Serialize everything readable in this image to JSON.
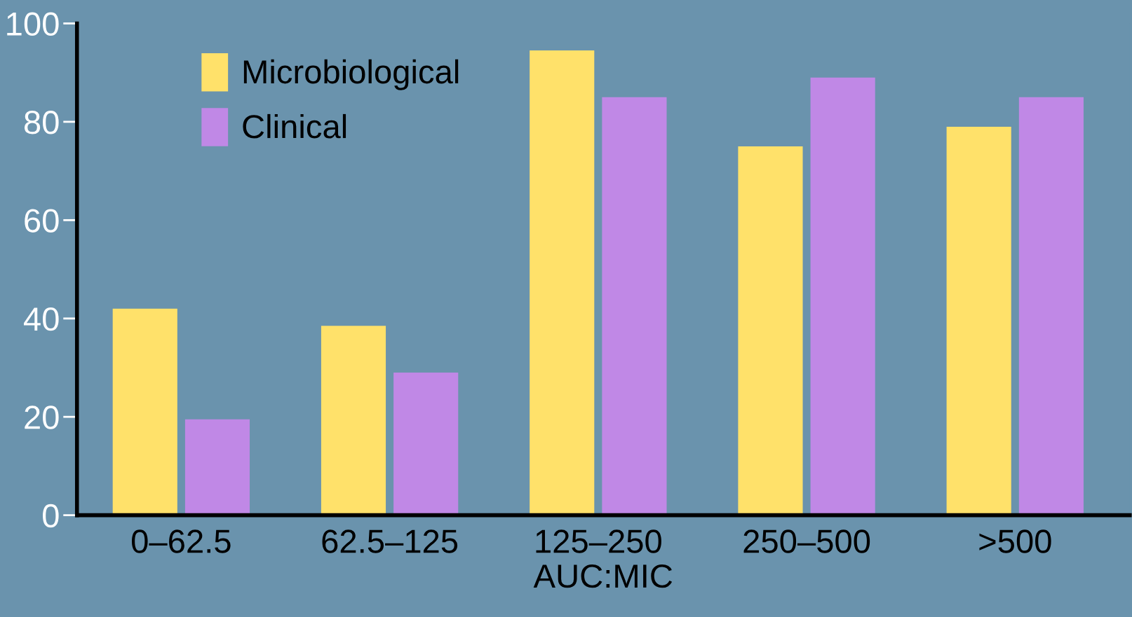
{
  "chart_data": {
    "type": "bar",
    "xlabel": "AUC:MIC",
    "categories": [
      "0–62.5",
      "62.5–125",
      "125–250",
      "250–500",
      ">500"
    ],
    "series": [
      {
        "name": "Microbiological",
        "color": "#ffe16a",
        "values": [
          42,
          38.5,
          94.5,
          75,
          79
        ]
      },
      {
        "name": "Clinical",
        "color": "#c088e6",
        "values": [
          19.5,
          29,
          85,
          89,
          85
        ]
      }
    ],
    "ylim": [
      0,
      100
    ],
    "yticks": [
      0,
      20,
      40,
      60,
      80,
      100
    ],
    "grid": false,
    "legend": "top left"
  }
}
